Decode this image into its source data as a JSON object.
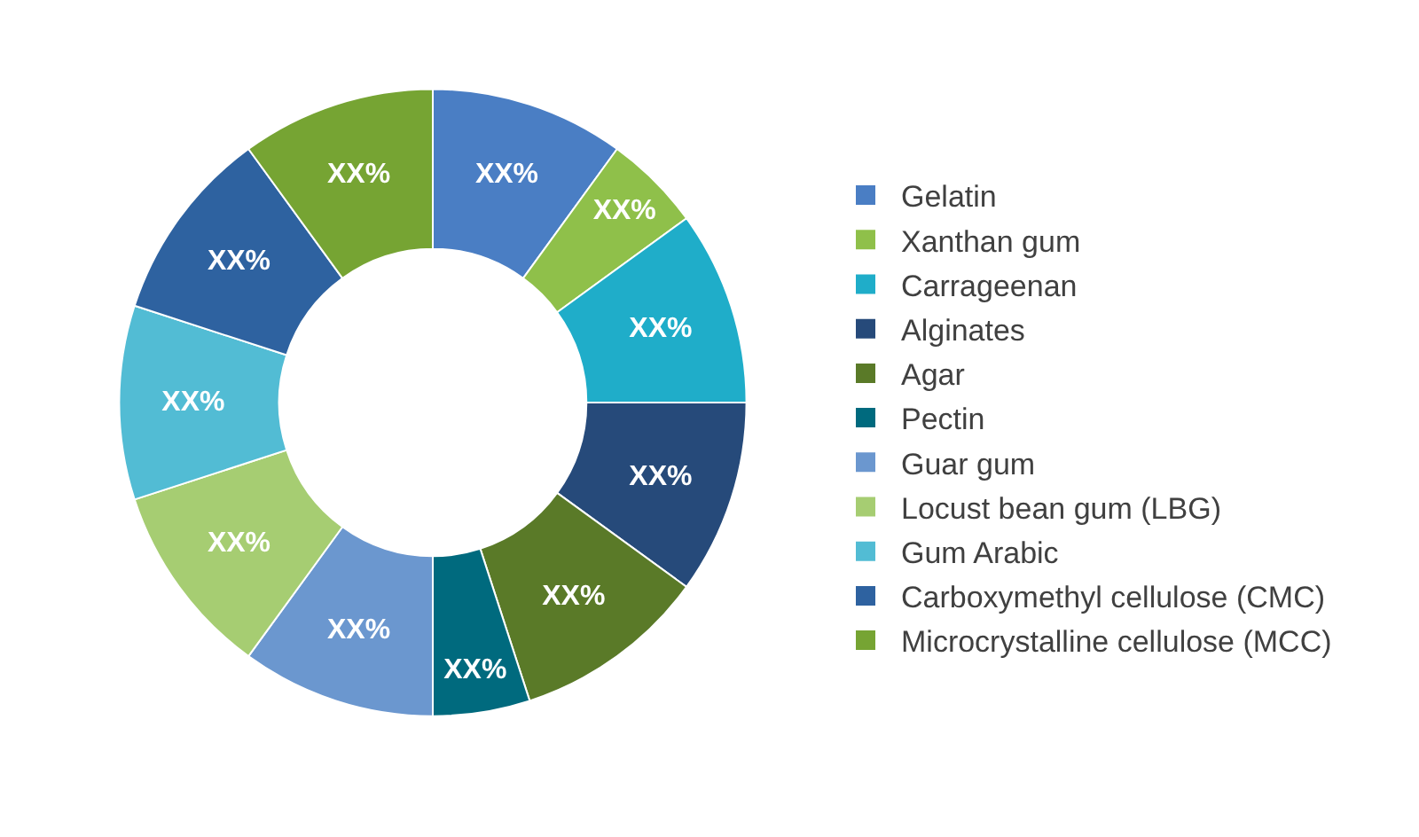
{
  "chart_data": {
    "type": "donut",
    "categories": [
      "Gelatin",
      "Xanthan gum",
      "Carrageenan",
      "Alginates",
      "Agar",
      "Pectin",
      "Guar gum",
      "Locust bean gum (LBG)",
      "Gum Arabic",
      "Carboxymethyl cellulose (CMC)",
      "Microcrystalline cellulose (MCC)"
    ],
    "values": [
      10,
      5,
      10,
      10,
      10,
      5,
      10,
      10,
      10,
      10,
      10
    ],
    "value_labels": [
      "XX%",
      "XX%",
      "XX%",
      "XX%",
      "XX%",
      "XX%",
      "XX%",
      "XX%",
      "XX%",
      "XX%",
      "XX%"
    ],
    "colors": [
      "#4a7ec4",
      "#8fc04a",
      "#1fadc9",
      "#264a7a",
      "#5a7a28",
      "#006a7e",
      "#6b97cf",
      "#a6cd72",
      "#52bcd4",
      "#2e62a0",
      "#76a433"
    ],
    "legend": "right"
  }
}
